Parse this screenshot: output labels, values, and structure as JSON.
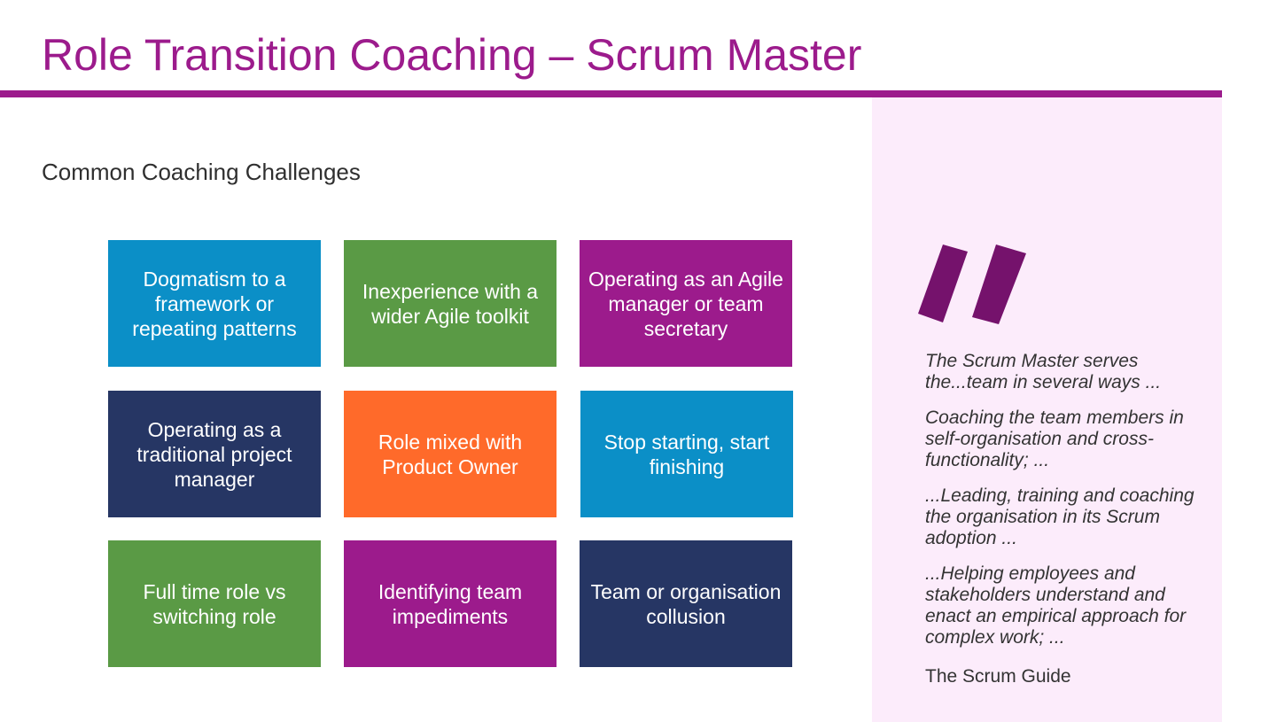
{
  "slide": {
    "title": "Role Transition Coaching – Scrum Master",
    "subtitle": "Common Coaching Challenges"
  },
  "colors": {
    "brand": "#9c1b8c",
    "blue": "#0b8fc7",
    "green": "#5a9a45",
    "purple": "#9c1b8c",
    "navy": "#263664",
    "orange": "#ff6a2a",
    "panel": "#fcecfb",
    "quote_mark": "#75126c"
  },
  "tiles": [
    {
      "label": "Dogmatism to a framework or repeating patterns",
      "color": "blue"
    },
    {
      "label": "Inexperience with a wider Agile toolkit",
      "color": "green"
    },
    {
      "label": "Operating as an Agile manager or team secretary",
      "color": "purple"
    },
    {
      "label": "Operating as a traditional project manager",
      "color": "navy"
    },
    {
      "label": "Role mixed with Product Owner",
      "color": "orange"
    },
    {
      "label": "Stop starting, start finishing",
      "color": "blue"
    },
    {
      "label": "Full time role vs switching role",
      "color": "green"
    },
    {
      "label": "Identifying team impediments",
      "color": "purple"
    },
    {
      "label": "Team or organisation collusion",
      "color": "navy"
    }
  ],
  "quote": {
    "icon": "quote-mark-icon",
    "paragraphs": [
      "The Scrum Master serves the...team in several ways ...",
      "Coaching the team members in self-organisation and cross-functionality; ...",
      "...Leading, training and coaching the organisation in its Scrum adoption ...",
      "...Helping employees and stakeholders understand and enact an empirical approach for complex work; ..."
    ],
    "source": "The Scrum Guide"
  }
}
